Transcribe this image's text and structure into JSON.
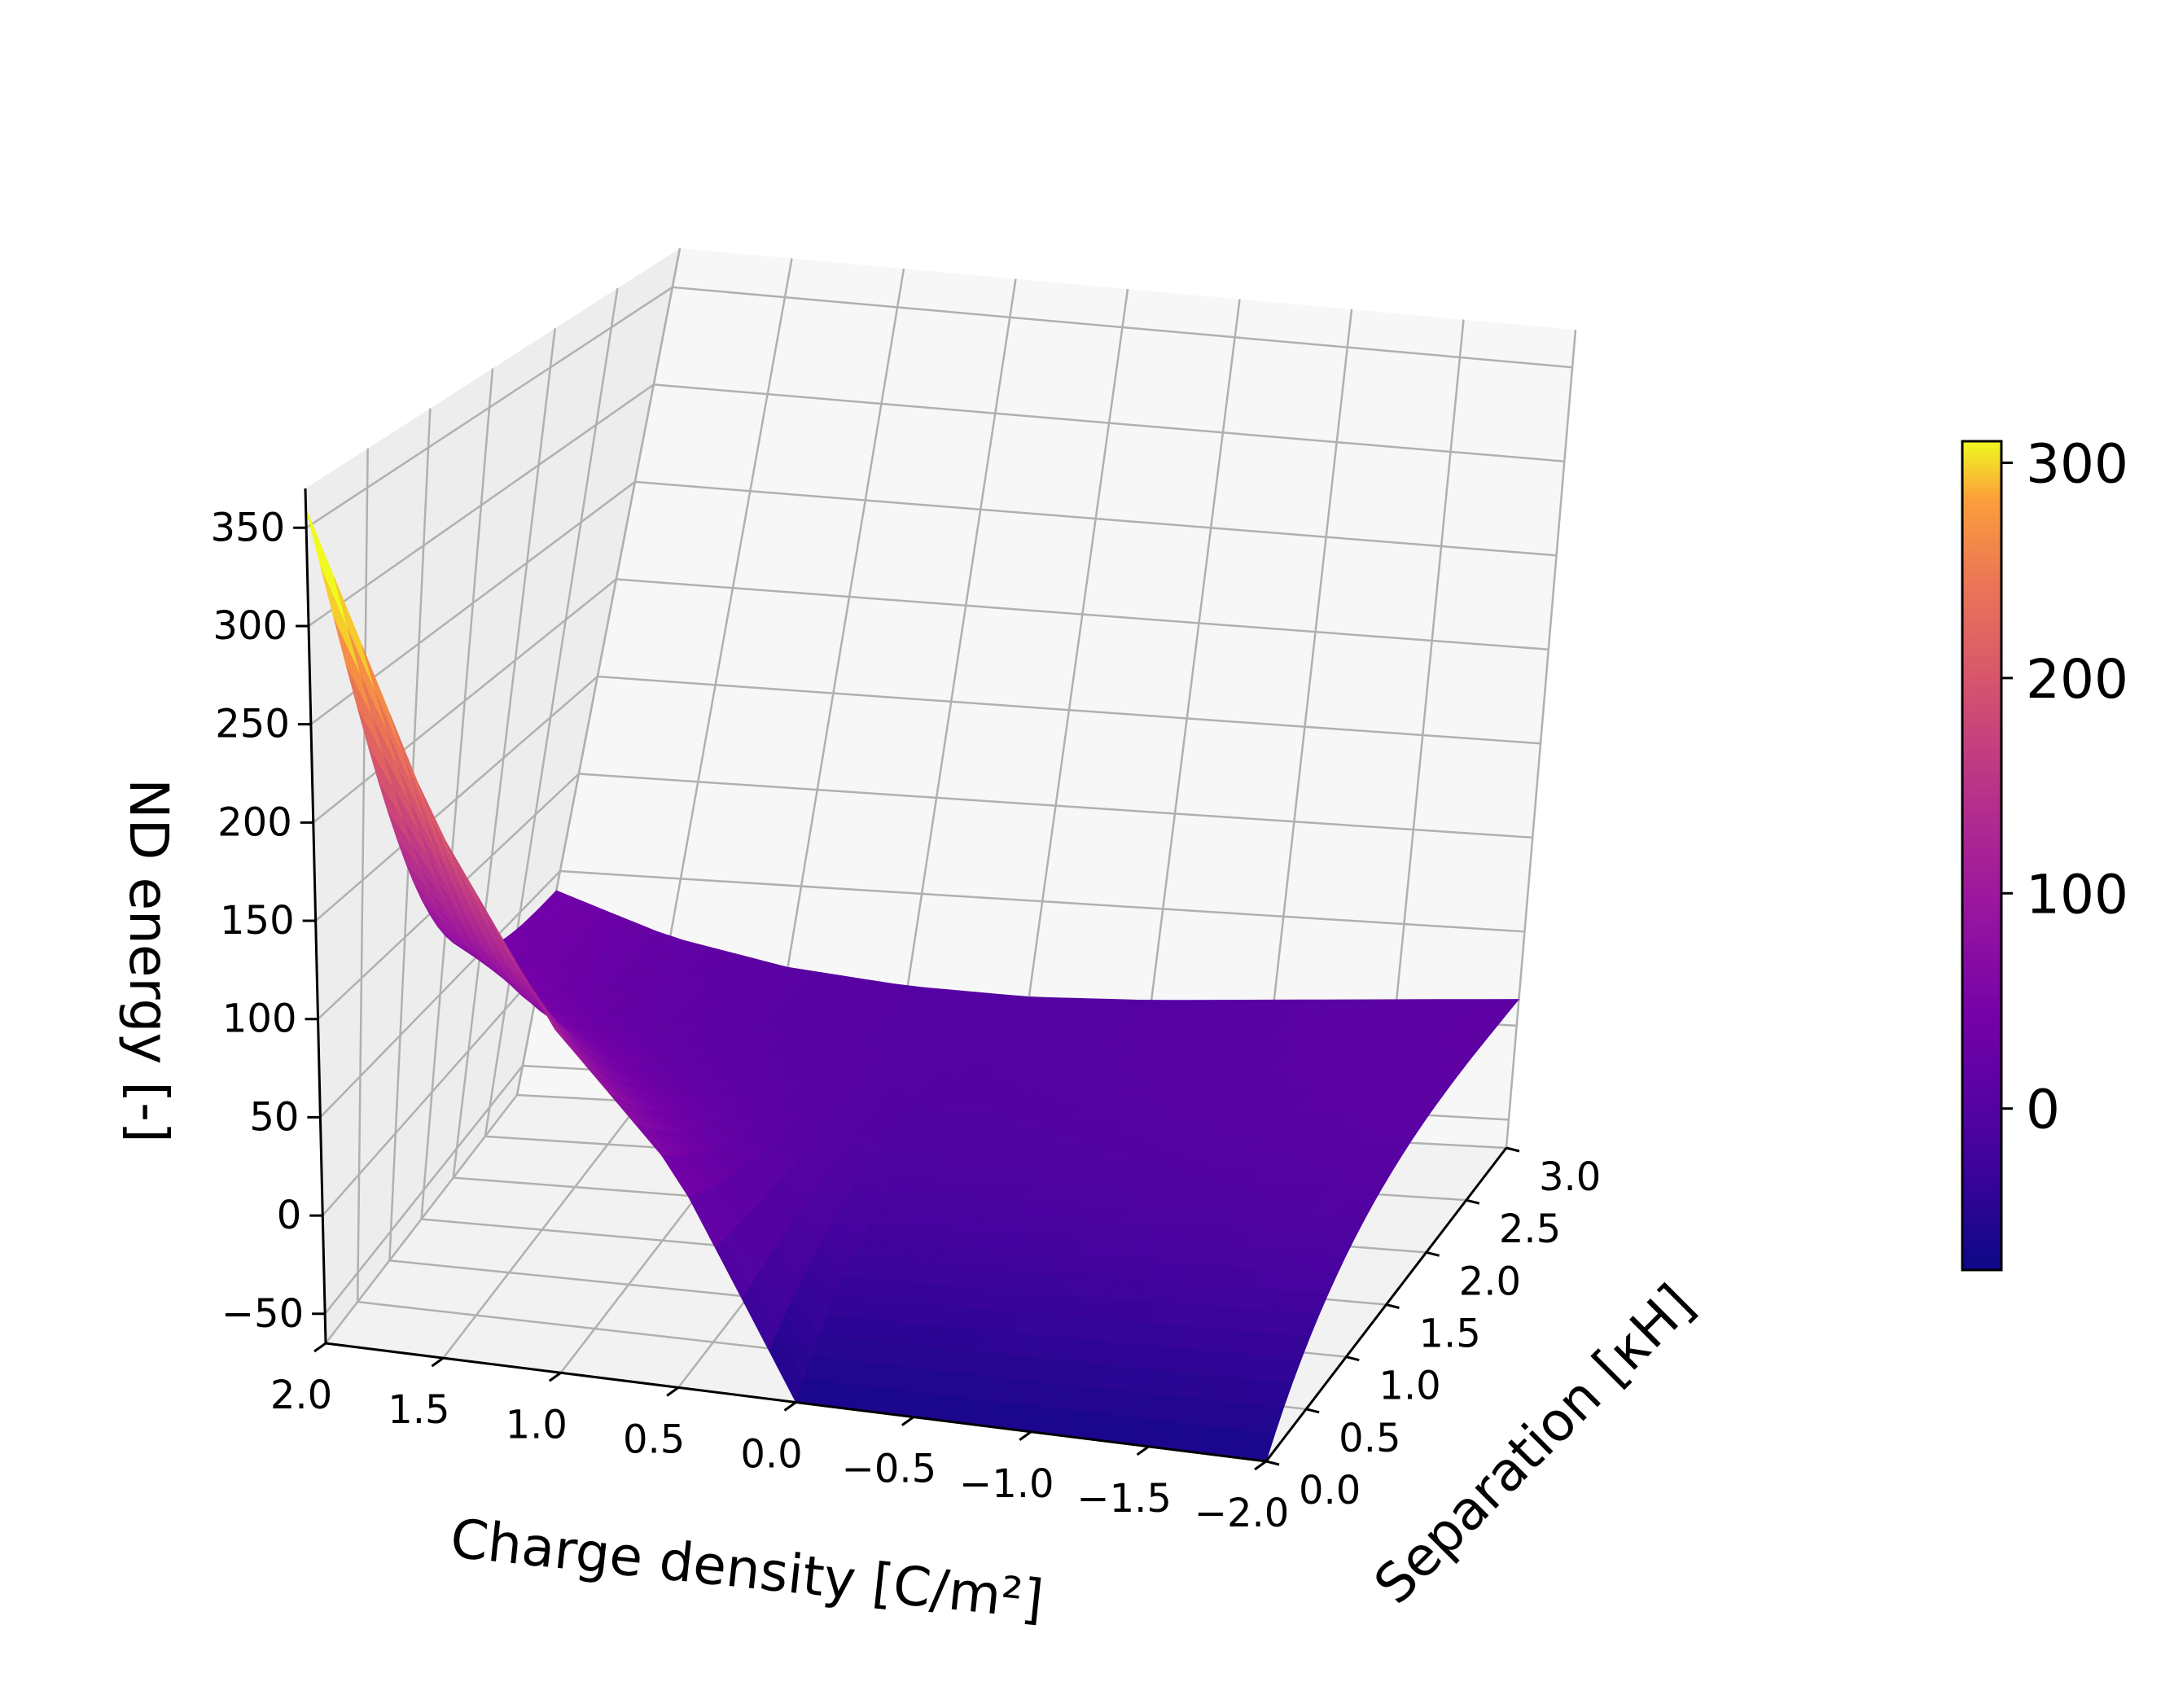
{
  "chart_data": {
    "type": "surface3d",
    "colormap": "plasma",
    "xlabel": "Charge density [C/m²]",
    "ylabel": "Separation [κH]",
    "zlabel": "ND energy [-]",
    "xlim": [
      2.0,
      -2.0
    ],
    "ylim": [
      0.0,
      3.0
    ],
    "zlim": [
      -65,
      370
    ],
    "x_ticks": [
      "2.0",
      "1.5",
      "1.0",
      "0.5",
      "0.0",
      "−0.5",
      "−1.0",
      "−1.5",
      "−2.0"
    ],
    "y_ticks": [
      "0.0",
      "0.5",
      "1.0",
      "1.5",
      "2.0",
      "2.5",
      "3.0"
    ],
    "z_ticks": [
      "−50",
      "0",
      "50",
      "100",
      "150",
      "200",
      "250",
      "300",
      "350"
    ],
    "grid": true,
    "colorbar": {
      "range": [
        -75,
        310
      ],
      "ticks": [
        "0",
        "100",
        "200",
        "300"
      ],
      "placement": "right"
    },
    "surface": {
      "charge_density": [
        2.0,
        1.5,
        1.0,
        0.5,
        0.0,
        -0.5,
        -1.0,
        -1.5,
        -2.0
      ],
      "separation": [
        0.0,
        0.5,
        1.0,
        1.5,
        2.0,
        2.5,
        3.0
      ],
      "energy_at_min_separation": [
        360,
        210,
        110,
        45,
        -65,
        -65,
        -65,
        -65,
        -65
      ],
      "energy_at_max_separation": [
        40,
        20,
        8,
        2,
        0,
        2,
        6,
        10,
        14
      ]
    }
  }
}
